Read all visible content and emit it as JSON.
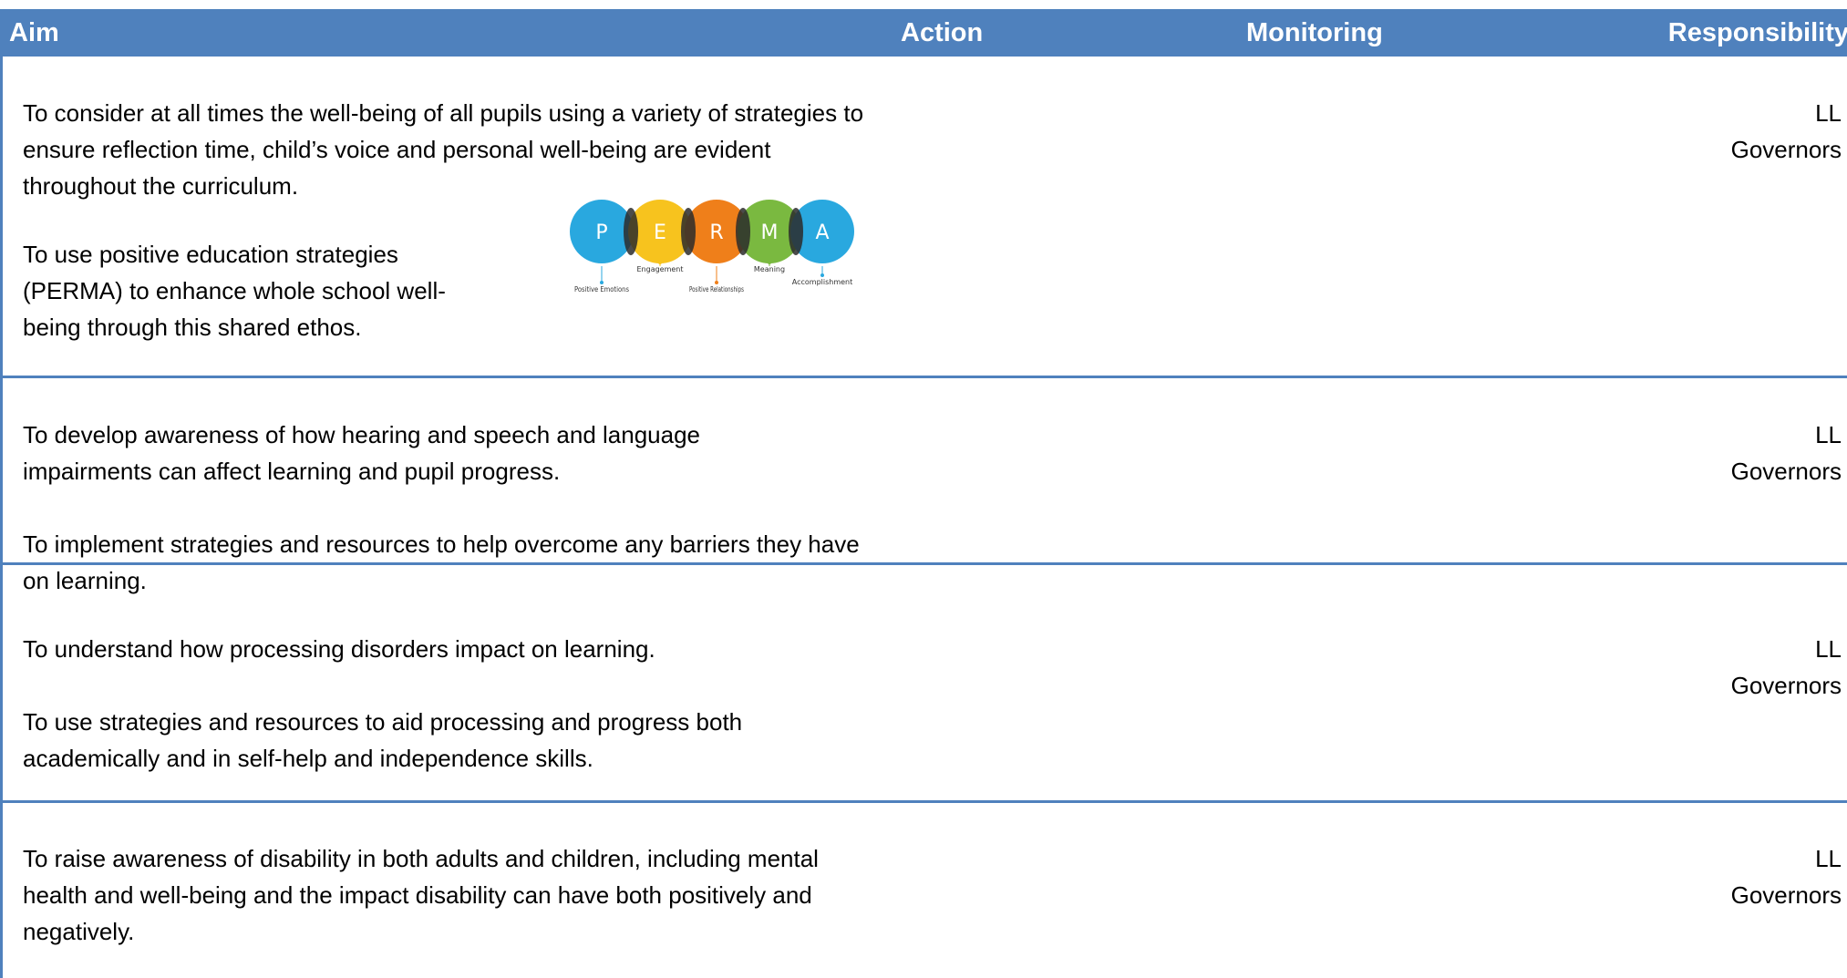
{
  "table": {
    "header": [
      "Aim",
      "Action",
      "Monitoring",
      "Responsibility"
    ],
    "rows": [
      {
        "aim": [
          "To consider at all times the well-being of all pupils using a variety of strategies to ensure reflection time, child’s voice and personal well-being are evident throughout the curriculum.",
          "To use positive education strategies (PERMA) to enhance whole school well-being through this shared ethos."
        ],
        "responsibility": [
          "LL",
          "Governors"
        ]
      },
      {
        "aim": [
          "To develop awareness of how hearing and speech and language impairments can affect learning and pupil progress.",
          "To implement strategies and resources to help overcome any barriers they have on learning."
        ],
        "responsibility": [
          "LL",
          "Governors"
        ]
      },
      {
        "aim": [
          "To understand how processing disorders impact on learning.",
          "To use strategies and resources to aid processing and progress both academically and in self-help and independence skills."
        ],
        "responsibility": [
          "LL",
          "Governors"
        ]
      },
      {
        "aim": [
          "To raise awareness of disability in both adults and children, including mental health and well-being and the impact disability can have both positively and negatively."
        ],
        "responsibility": [
          "LL",
          "Governors"
        ]
      }
    ]
  },
  "perma": {
    "letters": [
      "P",
      "E",
      "R",
      "M",
      "A"
    ],
    "labels": [
      "Positive Emotions",
      "Engagement",
      "Positive Relationships",
      "Meaning",
      "Accomplishment"
    ]
  }
}
